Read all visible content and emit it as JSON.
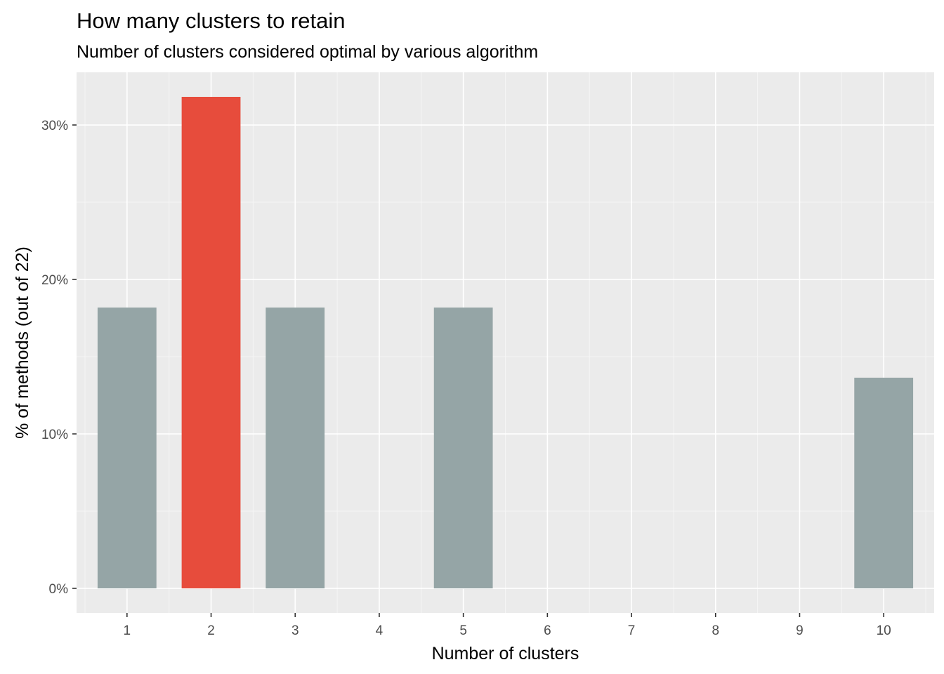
{
  "chart_data": {
    "type": "bar",
    "title": "How many clusters to retain",
    "subtitle": "Number of clusters considered optimal by various algorithm",
    "xlabel": "Number of clusters",
    "ylabel": "% of methods (out of 22)",
    "categories": [
      "1",
      "2",
      "3",
      "4",
      "5",
      "6",
      "7",
      "8",
      "9",
      "10"
    ],
    "values": [
      18.18,
      31.82,
      18.18,
      0,
      18.18,
      0,
      0,
      0,
      0,
      13.64
    ],
    "highlight_category": "2",
    "ylim": [
      -1.59,
      33.41
    ],
    "yticks": [
      0,
      10,
      20,
      30
    ],
    "ytick_labels": [
      "0%",
      "10%",
      "20%",
      "30%"
    ],
    "grid": true,
    "legend": "none",
    "colors": {
      "bar": "#95a5a6",
      "highlight": "#e74c3c",
      "panel": "#ebebeb",
      "grid_major": "#ffffff",
      "grid_minor": "#f5f5f5"
    }
  }
}
